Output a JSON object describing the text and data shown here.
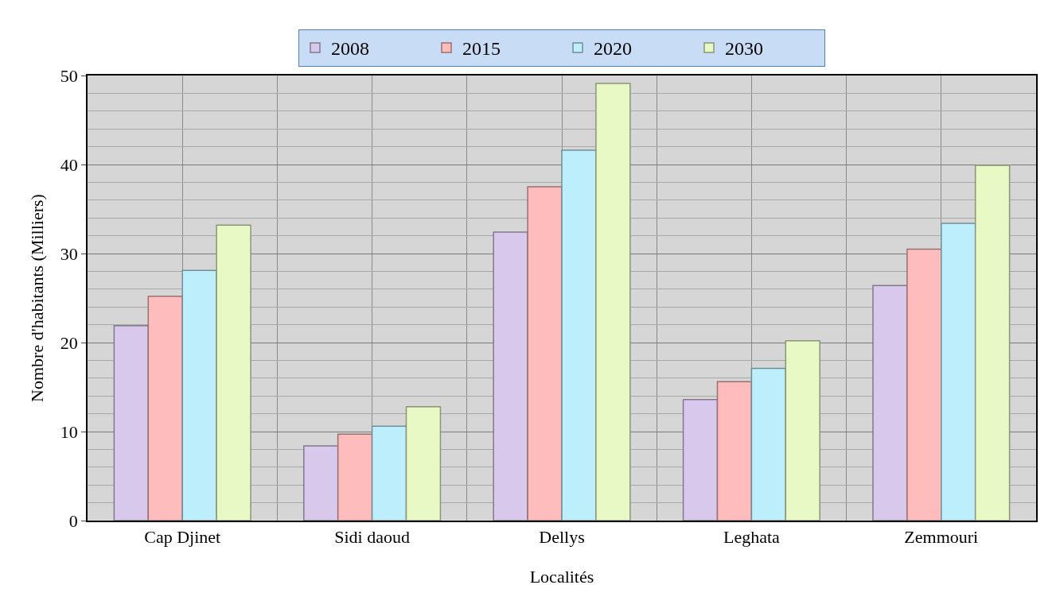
{
  "chart_data": {
    "type": "bar",
    "xlabel": "Localités",
    "ylabel": "Nombre d'habitants (Milliers)",
    "categories": [
      "Cap Djinet",
      "Sidi daoud",
      "Dellys",
      "Leghata",
      "Zemmouri"
    ],
    "series": [
      {
        "name": "2008",
        "color": "#d8c8ec",
        "values": [
          21.9,
          8.4,
          32.4,
          13.6,
          26.4
        ]
      },
      {
        "name": "2015",
        "color": "#ffbcbc",
        "values": [
          25.2,
          9.7,
          37.5,
          15.6,
          30.5
        ]
      },
      {
        "name": "2020",
        "color": "#bdeefb",
        "values": [
          28.1,
          10.6,
          41.6,
          17.1,
          33.4
        ]
      },
      {
        "name": "2030",
        "color": "#e9f9c6",
        "values": [
          33.2,
          12.8,
          49.1,
          20.2,
          39.9
        ]
      }
    ],
    "ylim": [
      0,
      50
    ],
    "yticks": [
      0,
      10,
      20,
      30,
      40,
      50
    ],
    "grid": true,
    "legend": "top"
  }
}
